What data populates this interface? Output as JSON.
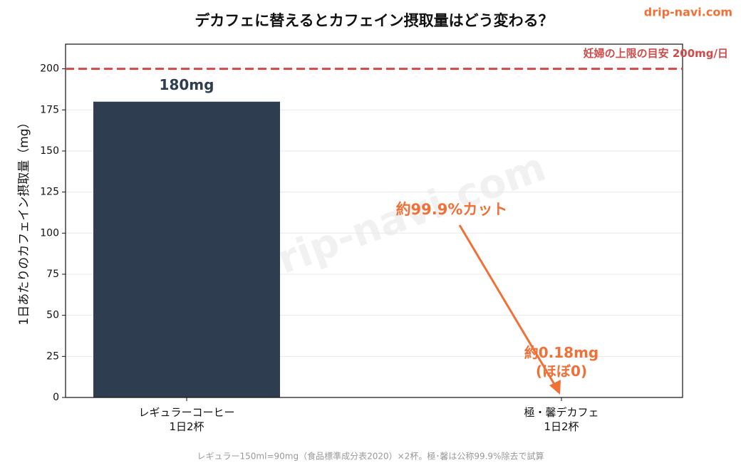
{
  "chart_data": {
    "type": "bar",
    "title": "デカフェに替えるとカフェイン摂取量はどう変わる？",
    "watermark": "drip-navi.com",
    "ylabel": "1日あたりのカフェイン摂取量（mg）",
    "categories": [
      "レギュラーコーヒー\n1日2杯",
      "極・馨デカフェ\n1日2杯"
    ],
    "values": [
      180,
      0.18
    ],
    "value_labels": [
      "180mg",
      "約0.18mg\n(ほぼ0)"
    ],
    "colors": [
      "#2e3e50",
      "#2e3e50"
    ],
    "ylim": [
      0,
      215
    ],
    "yticks": [
      0,
      25,
      50,
      75,
      100,
      125,
      150,
      175,
      200
    ],
    "grid": true,
    "reference_line": {
      "value": 200,
      "label": "妊婦の上限の目安 200mg/日",
      "color": "#d04a4a"
    },
    "annotation": {
      "text": "約99.9%カット",
      "color": "#f07138"
    },
    "footnote": "レギュラー150ml=90mg（食品標準成分表2020）×2杯。極･馨は公称99.9%除去で試算"
  }
}
